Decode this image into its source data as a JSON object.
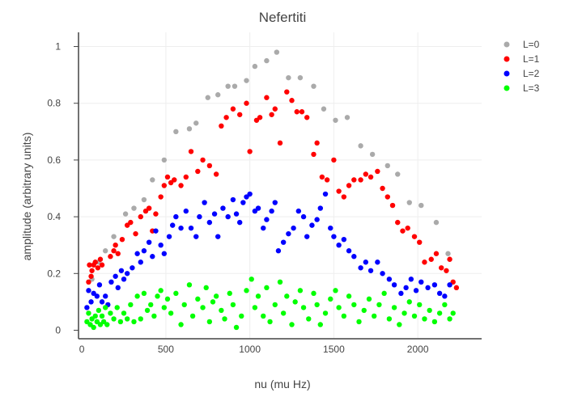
{
  "chart_data": {
    "type": "scatter",
    "title": "Nefertiti",
    "xlabel": "nu (mu Hz)",
    "ylabel": "amplitude (arbitrary units)",
    "xlim": [
      -20,
      2380
    ],
    "ylim": [
      -0.03,
      1.05
    ],
    "x_ticks": [
      0,
      500,
      1000,
      1500,
      2000
    ],
    "y_ticks": [
      0,
      0.2,
      0.4,
      0.6,
      0.8,
      1
    ],
    "grid": true,
    "legend_position": "top-right",
    "series": [
      {
        "name": "L=0",
        "color": "#aaaaaa",
        "points": [
          [
            60,
            0.18
          ],
          [
            100,
            0.24
          ],
          [
            140,
            0.28
          ],
          [
            190,
            0.33
          ],
          [
            260,
            0.41
          ],
          [
            310,
            0.43
          ],
          [
            370,
            0.46
          ],
          [
            420,
            0.53
          ],
          [
            490,
            0.6
          ],
          [
            560,
            0.7
          ],
          [
            640,
            0.71
          ],
          [
            680,
            0.73
          ],
          [
            750,
            0.82
          ],
          [
            810,
            0.83
          ],
          [
            870,
            0.86
          ],
          [
            910,
            0.86
          ],
          [
            980,
            0.88
          ],
          [
            1030,
            0.93
          ],
          [
            1100,
            0.95
          ],
          [
            1160,
            0.98
          ],
          [
            1230,
            0.89
          ],
          [
            1300,
            0.89
          ],
          [
            1380,
            0.86
          ],
          [
            1440,
            0.78
          ],
          [
            1510,
            0.74
          ],
          [
            1580,
            0.75
          ],
          [
            1660,
            0.65
          ],
          [
            1730,
            0.62
          ],
          [
            1820,
            0.58
          ],
          [
            1880,
            0.55
          ],
          [
            1950,
            0.45
          ],
          [
            2020,
            0.44
          ],
          [
            2110,
            0.38
          ],
          [
            2180,
            0.27
          ]
        ]
      },
      {
        "name": "L=1",
        "color": "#ff0000",
        "points": [
          [
            40,
            0.17
          ],
          [
            45,
            0.23
          ],
          [
            55,
            0.19
          ],
          [
            60,
            0.21
          ],
          [
            70,
            0.23
          ],
          [
            80,
            0.24
          ],
          [
            95,
            0.22
          ],
          [
            110,
            0.25
          ],
          [
            120,
            0.23
          ],
          [
            170,
            0.26
          ],
          [
            190,
            0.28
          ],
          [
            200,
            0.3
          ],
          [
            215,
            0.27
          ],
          [
            240,
            0.32
          ],
          [
            270,
            0.37
          ],
          [
            290,
            0.38
          ],
          [
            320,
            0.34
          ],
          [
            350,
            0.4
          ],
          [
            380,
            0.42
          ],
          [
            400,
            0.43
          ],
          [
            420,
            0.35
          ],
          [
            440,
            0.41
          ],
          [
            470,
            0.47
          ],
          [
            490,
            0.51
          ],
          [
            510,
            0.54
          ],
          [
            530,
            0.52
          ],
          [
            550,
            0.53
          ],
          [
            590,
            0.51
          ],
          [
            620,
            0.54
          ],
          [
            650,
            0.63
          ],
          [
            690,
            0.56
          ],
          [
            720,
            0.6
          ],
          [
            760,
            0.58
          ],
          [
            800,
            0.55
          ],
          [
            830,
            0.72
          ],
          [
            860,
            0.75
          ],
          [
            900,
            0.78
          ],
          [
            940,
            0.76
          ],
          [
            980,
            0.8
          ],
          [
            1000,
            0.63
          ],
          [
            1040,
            0.74
          ],
          [
            1060,
            0.75
          ],
          [
            1100,
            0.82
          ],
          [
            1130,
            0.76
          ],
          [
            1150,
            0.78
          ],
          [
            1180,
            0.66
          ],
          [
            1220,
            0.84
          ],
          [
            1250,
            0.81
          ],
          [
            1280,
            0.77
          ],
          [
            1310,
            0.77
          ],
          [
            1340,
            0.75
          ],
          [
            1380,
            0.62
          ],
          [
            1400,
            0.66
          ],
          [
            1430,
            0.54
          ],
          [
            1460,
            0.53
          ],
          [
            1500,
            0.6
          ],
          [
            1530,
            0.49
          ],
          [
            1560,
            0.47
          ],
          [
            1590,
            0.51
          ],
          [
            1620,
            0.53
          ],
          [
            1660,
            0.53
          ],
          [
            1690,
            0.55
          ],
          [
            1720,
            0.54
          ],
          [
            1760,
            0.56
          ],
          [
            1790,
            0.5
          ],
          [
            1820,
            0.47
          ],
          [
            1850,
            0.44
          ],
          [
            1880,
            0.38
          ],
          [
            1910,
            0.35
          ],
          [
            1940,
            0.36
          ],
          [
            1980,
            0.33
          ],
          [
            2010,
            0.31
          ],
          [
            2040,
            0.24
          ],
          [
            2080,
            0.25
          ],
          [
            2110,
            0.27
          ],
          [
            2140,
            0.22
          ],
          [
            2170,
            0.21
          ],
          [
            2190,
            0.25
          ],
          [
            2210,
            0.17
          ],
          [
            2230,
            0.15
          ]
        ]
      },
      {
        "name": "L=2",
        "color": "#0000ff",
        "points": [
          [
            30,
            0.08
          ],
          [
            40,
            0.14
          ],
          [
            55,
            0.1
          ],
          [
            70,
            0.13
          ],
          [
            90,
            0.12
          ],
          [
            105,
            0.16
          ],
          [
            120,
            0.1
          ],
          [
            140,
            0.12
          ],
          [
            155,
            0.09
          ],
          [
            175,
            0.17
          ],
          [
            200,
            0.19
          ],
          [
            215,
            0.15
          ],
          [
            235,
            0.21
          ],
          [
            250,
            0.18
          ],
          [
            270,
            0.2
          ],
          [
            300,
            0.22
          ],
          [
            330,
            0.27
          ],
          [
            350,
            0.24
          ],
          [
            370,
            0.28
          ],
          [
            400,
            0.31
          ],
          [
            420,
            0.26
          ],
          [
            440,
            0.35
          ],
          [
            470,
            0.3
          ],
          [
            490,
            0.27
          ],
          [
            520,
            0.33
          ],
          [
            540,
            0.37
          ],
          [
            560,
            0.4
          ],
          [
            590,
            0.36
          ],
          [
            620,
            0.42
          ],
          [
            650,
            0.36
          ],
          [
            680,
            0.33
          ],
          [
            700,
            0.4
          ],
          [
            730,
            0.45
          ],
          [
            760,
            0.38
          ],
          [
            790,
            0.41
          ],
          [
            810,
            0.33
          ],
          [
            840,
            0.43
          ],
          [
            870,
            0.4
          ],
          [
            900,
            0.46
          ],
          [
            920,
            0.41
          ],
          [
            940,
            0.38
          ],
          [
            960,
            0.45
          ],
          [
            980,
            0.47
          ],
          [
            1000,
            0.48
          ],
          [
            1030,
            0.42
          ],
          [
            1050,
            0.43
          ],
          [
            1080,
            0.36
          ],
          [
            1100,
            0.39
          ],
          [
            1130,
            0.42
          ],
          [
            1150,
            0.45
          ],
          [
            1170,
            0.28
          ],
          [
            1200,
            0.31
          ],
          [
            1230,
            0.34
          ],
          [
            1260,
            0.36
          ],
          [
            1290,
            0.42
          ],
          [
            1320,
            0.4
          ],
          [
            1340,
            0.33
          ],
          [
            1370,
            0.37
          ],
          [
            1400,
            0.39
          ],
          [
            1420,
            0.43
          ],
          [
            1450,
            0.48
          ],
          [
            1480,
            0.36
          ],
          [
            1500,
            0.33
          ],
          [
            1530,
            0.3
          ],
          [
            1560,
            0.32
          ],
          [
            1590,
            0.28
          ],
          [
            1620,
            0.26
          ],
          [
            1660,
            0.22
          ],
          [
            1690,
            0.24
          ],
          [
            1720,
            0.21
          ],
          [
            1760,
            0.24
          ],
          [
            1790,
            0.2
          ],
          [
            1830,
            0.18
          ],
          [
            1860,
            0.16
          ],
          [
            1900,
            0.13
          ],
          [
            1930,
            0.15
          ],
          [
            1960,
            0.18
          ],
          [
            1990,
            0.14
          ],
          [
            2020,
            0.17
          ],
          [
            2060,
            0.15
          ],
          [
            2100,
            0.16
          ],
          [
            2130,
            0.13
          ],
          [
            2160,
            0.12
          ],
          [
            2190,
            0.16
          ]
        ]
      },
      {
        "name": "L=3",
        "color": "#00ff00",
        "points": [
          [
            30,
            0.03
          ],
          [
            40,
            0.06
          ],
          [
            50,
            0.02
          ],
          [
            60,
            0.04
          ],
          [
            70,
            0.01
          ],
          [
            80,
            0.05
          ],
          [
            90,
            0.03
          ],
          [
            100,
            0.07
          ],
          [
            110,
            0.02
          ],
          [
            120,
            0.05
          ],
          [
            130,
            0.03
          ],
          [
            140,
            0.08
          ],
          [
            150,
            0.02
          ],
          [
            170,
            0.06
          ],
          [
            190,
            0.04
          ],
          [
            210,
            0.08
          ],
          [
            230,
            0.03
          ],
          [
            250,
            0.06
          ],
          [
            270,
            0.04
          ],
          [
            290,
            0.09
          ],
          [
            310,
            0.03
          ],
          [
            330,
            0.12
          ],
          [
            350,
            0.04
          ],
          [
            370,
            0.13
          ],
          [
            390,
            0.07
          ],
          [
            410,
            0.09
          ],
          [
            430,
            0.05
          ],
          [
            450,
            0.12
          ],
          [
            470,
            0.14
          ],
          [
            490,
            0.08
          ],
          [
            510,
            0.11
          ],
          [
            530,
            0.06
          ],
          [
            560,
            0.13
          ],
          [
            590,
            0.02
          ],
          [
            610,
            0.09
          ],
          [
            640,
            0.16
          ],
          [
            660,
            0.05
          ],
          [
            690,
            0.11
          ],
          [
            720,
            0.08
          ],
          [
            740,
            0.15
          ],
          [
            760,
            0.03
          ],
          [
            780,
            0.1
          ],
          [
            800,
            0.12
          ],
          [
            830,
            0.07
          ],
          [
            850,
            0.04
          ],
          [
            880,
            0.13
          ],
          [
            900,
            0.09
          ],
          [
            920,
            0.01
          ],
          [
            950,
            0.05
          ],
          [
            980,
            0.14
          ],
          [
            1010,
            0.18
          ],
          [
            1030,
            0.08
          ],
          [
            1050,
            0.12
          ],
          [
            1080,
            0.05
          ],
          [
            1100,
            0.15
          ],
          [
            1120,
            0.03
          ],
          [
            1150,
            0.09
          ],
          [
            1180,
            0.17
          ],
          [
            1200,
            0.06
          ],
          [
            1220,
            0.12
          ],
          [
            1250,
            0.02
          ],
          [
            1270,
            0.1
          ],
          [
            1300,
            0.14
          ],
          [
            1320,
            0.08
          ],
          [
            1350,
            0.04
          ],
          [
            1380,
            0.13
          ],
          [
            1400,
            0.09
          ],
          [
            1420,
            0.02
          ],
          [
            1450,
            0.06
          ],
          [
            1480,
            0.11
          ],
          [
            1510,
            0.14
          ],
          [
            1530,
            0.08
          ],
          [
            1560,
            0.05
          ],
          [
            1590,
            0.12
          ],
          [
            1620,
            0.09
          ],
          [
            1650,
            0.03
          ],
          [
            1680,
            0.07
          ],
          [
            1710,
            0.11
          ],
          [
            1740,
            0.05
          ],
          [
            1770,
            0.09
          ],
          [
            1800,
            0.13
          ],
          [
            1830,
            0.04
          ],
          [
            1860,
            0.08
          ],
          [
            1890,
            0.02
          ],
          [
            1920,
            0.06
          ],
          [
            1950,
            0.1
          ],
          [
            1980,
            0.05
          ],
          [
            2010,
            0.09
          ],
          [
            2040,
            0.04
          ],
          [
            2070,
            0.07
          ],
          [
            2100,
            0.03
          ],
          [
            2130,
            0.06
          ],
          [
            2160,
            0.09
          ],
          [
            2190,
            0.04
          ],
          [
            2210,
            0.06
          ]
        ]
      }
    ]
  }
}
